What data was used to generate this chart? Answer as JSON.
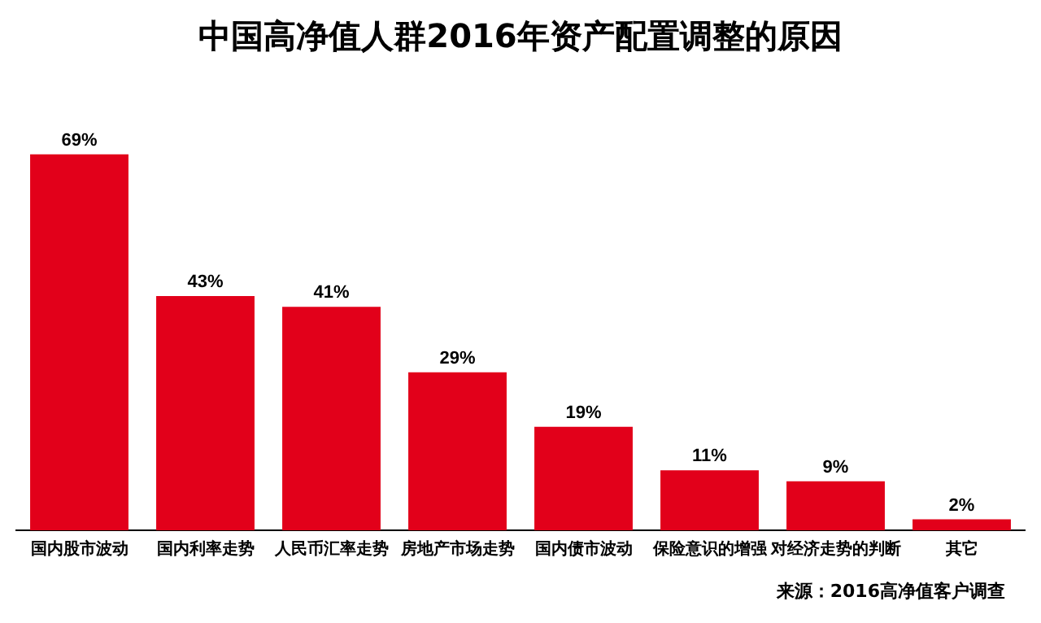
{
  "chart_data": {
    "type": "bar",
    "title": "中国高净值人群2016年资产配置调整的原因",
    "categories": [
      "国内股市波动",
      "国内利率走势",
      "人民币汇率走势",
      "房地产市场走势",
      "国内债市波动",
      "保险意识的增强",
      "对经济走势的判断",
      "其它"
    ],
    "values": [
      69,
      43,
      41,
      29,
      19,
      11,
      9,
      2
    ],
    "value_labels": [
      "69%",
      "43%",
      "41%",
      "29%",
      "19%",
      "11%",
      "9%",
      "2%"
    ],
    "color": "#e2001a",
    "grid": false,
    "legend": false,
    "annotations": [
      "来源：2016高净值客户调查"
    ]
  }
}
